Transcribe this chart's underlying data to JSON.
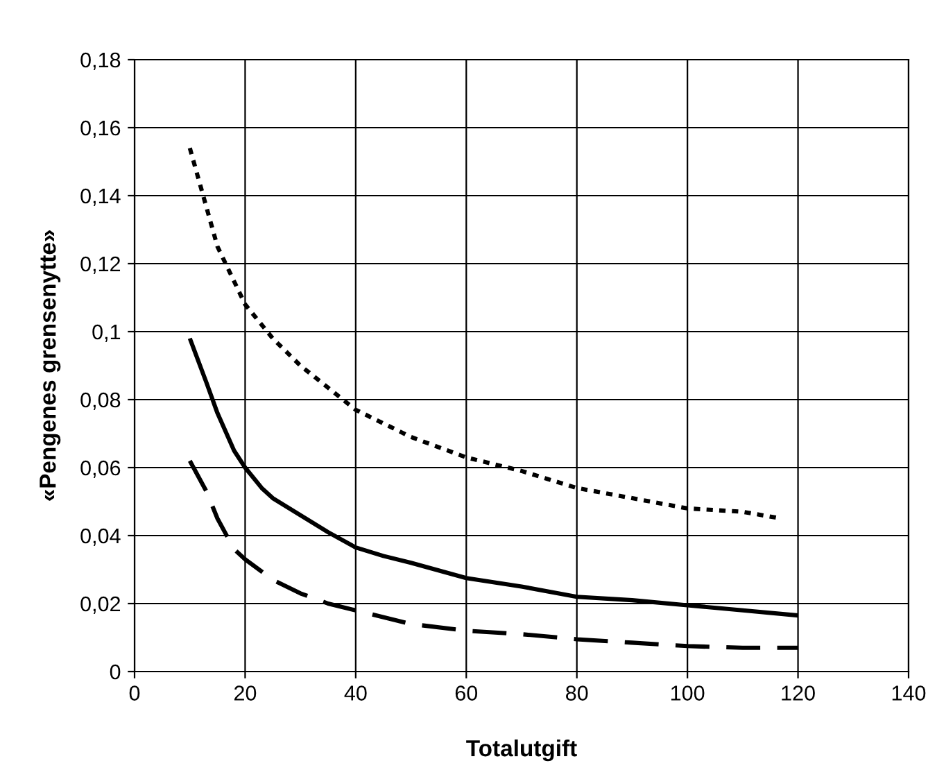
{
  "chart_data": {
    "type": "line",
    "xlabel": "Totalutgift",
    "ylabel": "«Pengenes grensenytte»",
    "xlim": [
      0,
      140
    ],
    "xticks": [
      0,
      20,
      40,
      60,
      80,
      100,
      120,
      140
    ],
    "ylim": [
      0,
      0.18
    ],
    "yticks": [
      0,
      {
        "value": 0.02,
        "label": "0,02"
      },
      {
        "value": 0.04,
        "label": "0,04"
      },
      {
        "value": 0.06,
        "label": "0,06"
      },
      {
        "value": 0.08,
        "label": "0,08"
      },
      {
        "value": 0.1,
        "label": "0,1"
      },
      {
        "value": 0.12,
        "label": "0,12"
      },
      {
        "value": 0.14,
        "label": "0,14"
      },
      {
        "value": 0.16,
        "label": "0,16"
      },
      {
        "value": 0.18,
        "label": "0,18"
      }
    ],
    "grid": true,
    "legend": false,
    "marker": "none",
    "series": [
      {
        "color": "#000000",
        "line_style": "dotted",
        "x": [
          10,
          15,
          20,
          25,
          30,
          40,
          50,
          60,
          70,
          80,
          90,
          100,
          110,
          117
        ],
        "values": [
          0.154,
          0.125,
          0.108,
          0.098,
          0.09,
          0.077,
          0.069,
          0.063,
          0.059,
          0.054,
          0.051,
          0.048,
          0.047,
          0.045
        ]
      },
      {
        "color": "#000000",
        "line_style": "solid",
        "x": [
          10,
          13,
          15,
          18,
          20,
          23,
          25,
          30,
          35,
          40,
          45,
          50,
          60,
          70,
          80,
          90,
          100,
          110,
          120
        ],
        "values": [
          0.098,
          0.085,
          0.076,
          0.065,
          0.06,
          0.054,
          0.051,
          0.046,
          0.041,
          0.0365,
          0.034,
          0.032,
          0.0275,
          0.025,
          0.022,
          0.021,
          0.0195,
          0.018,
          0.0165
        ]
      },
      {
        "color": "#000000",
        "line_style": "dashed",
        "x": [
          10,
          13,
          15,
          18,
          20,
          25,
          30,
          35,
          40,
          50,
          60,
          70,
          80,
          90,
          100,
          110,
          120
        ],
        "values": [
          0.062,
          0.053,
          0.045,
          0.036,
          0.033,
          0.027,
          0.023,
          0.02,
          0.018,
          0.014,
          0.012,
          0.011,
          0.0095,
          0.0085,
          0.0075,
          0.007,
          0.007
        ]
      }
    ]
  }
}
